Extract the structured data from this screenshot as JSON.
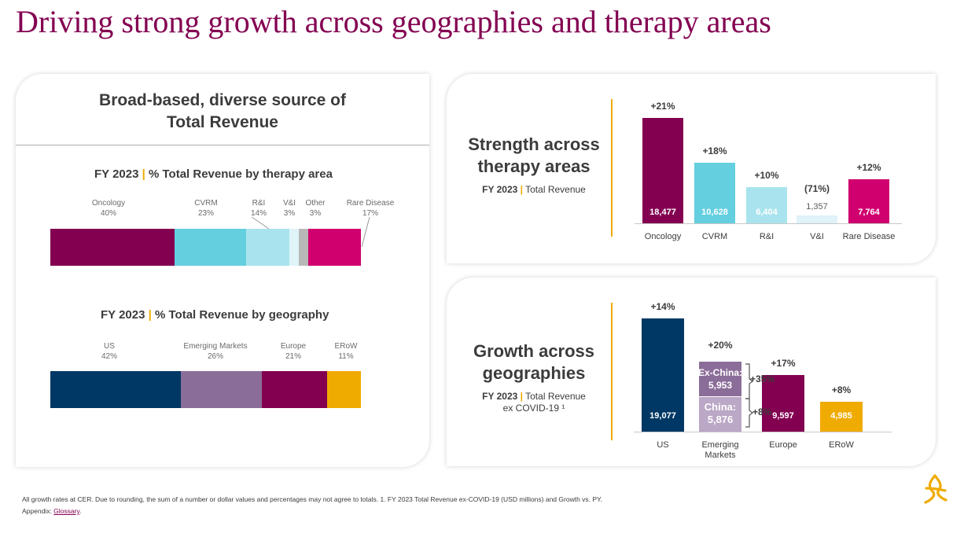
{
  "slide": {
    "title": "Driving strong growth across geographies and therapy areas"
  },
  "colors": {
    "brand": "#830051",
    "accent_gold": "#f0ab00",
    "oncology": "#830051",
    "cvrm": "#63cfdf",
    "ri": "#a9e4ee",
    "vi": "#dff3f8",
    "other": "#b8b8b8",
    "rare_disease": "#d0006f",
    "us": "#003865",
    "emerging_markets": "#8b6d99",
    "emerging_markets_china": "#bba7c6",
    "europe": "#830051",
    "erow": "#f0ab00"
  },
  "left_card": {
    "heading_line1": "Broad-based, diverse source of",
    "heading_line2": "Total Revenue",
    "therapy_subhead_year": "FY 2023",
    "therapy_subhead_pipe": "|",
    "therapy_subhead_text": "% Total Revenue by therapy area",
    "geo_subhead_year": "FY 2023",
    "geo_subhead_pipe": "|",
    "geo_subhead_text": "% Total Revenue by geography"
  },
  "top_right": {
    "title_line1": "Strength across",
    "title_line2": "therapy areas",
    "sub_year": "FY 2023",
    "sub_pipe": "|",
    "sub_text": "Total Revenue"
  },
  "bottom_right": {
    "title_line1": "Growth across",
    "title_line2": "geographies",
    "sub_year": "FY 2023",
    "sub_pipe": "|",
    "sub_text": "Total Revenue",
    "sub_line2": "ex COVID-19 ¹",
    "ex_china_label": "Ex-China:",
    "ex_china_value": "5,953",
    "ex_china_growth": "+35%",
    "china_label": "China:",
    "china_value": "5,876",
    "china_growth": "+8%"
  },
  "chart_data": [
    {
      "type": "bar",
      "subtype": "stacked-100-horizontal",
      "title": "FY 2023 | % Total Revenue by therapy area",
      "categories": [
        "Oncology",
        "CVRM",
        "R&I",
        "V&I",
        "Other",
        "Rare Disease"
      ],
      "values": [
        40,
        23,
        14,
        3,
        3,
        17
      ],
      "labels": [
        "40%",
        "23%",
        "14%",
        "3%",
        "3%",
        "17%"
      ],
      "unit": "%"
    },
    {
      "type": "bar",
      "subtype": "stacked-100-horizontal",
      "title": "FY 2023 | % Total Revenue by geography",
      "categories": [
        "US",
        "Emerging Markets",
        "Europe",
        "ERoW"
      ],
      "values": [
        42,
        26,
        21,
        11
      ],
      "labels": [
        "42%",
        "26%",
        "21%",
        "11%"
      ],
      "unit": "%"
    },
    {
      "type": "bar",
      "title": "Strength across therapy areas — FY 2023 Total Revenue",
      "categories": [
        "Oncology",
        "CVRM",
        "R&I",
        "V&I",
        "Rare Disease"
      ],
      "values": [
        18477,
        10628,
        6404,
        1357,
        7764
      ],
      "value_labels": [
        "18,477",
        "10,628",
        "6,404",
        "1,357",
        "7,764"
      ],
      "growth": [
        "+21%",
        "+18%",
        "+10%",
        "(71%)",
        "+12%"
      ],
      "ylim": [
        0,
        18477
      ]
    },
    {
      "type": "bar",
      "title": "Growth across geographies — FY 2023 Total Revenue ex COVID-19",
      "categories": [
        "US",
        "Emerging Markets",
        "Europe",
        "ERoW"
      ],
      "category_lines": [
        [
          "US"
        ],
        [
          "Emerging",
          "Markets"
        ],
        [
          "Europe"
        ],
        [
          "ERoW"
        ]
      ],
      "values": [
        19077,
        11829,
        9597,
        4985
      ],
      "value_labels": [
        "19,077",
        "",
        "9,597",
        "4,985"
      ],
      "growth": [
        "+14%",
        "+20%",
        "+17%",
        "+8%"
      ],
      "stacked_em": {
        "china": 5876,
        "ex_china": 5953
      },
      "ylim": [
        0,
        19077
      ]
    }
  ],
  "footnote": {
    "line1": "All growth rates at CER. Due to rounding, the sum of a number or dollar values and percentages may not agree to totals. 1. FY 2023 Total Revenue ex-COVID-19 (USD millions) and Growth vs. PY.",
    "line2_prefix": "Appendix: ",
    "line2_link": "Glossary",
    "line2_suffix": "."
  },
  "icons": {
    "logo": "astrazeneca-logo-icon"
  }
}
